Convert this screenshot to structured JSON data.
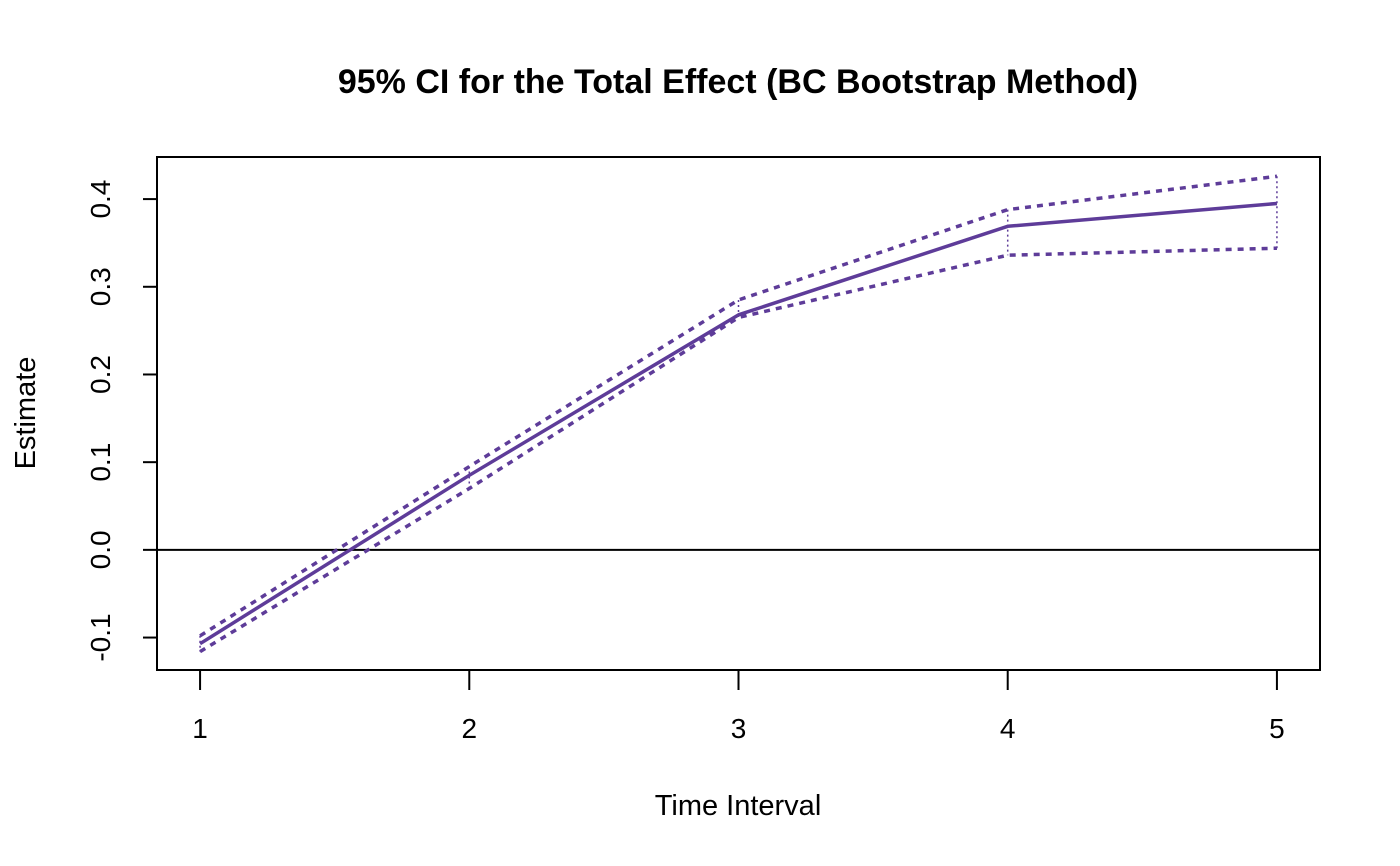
{
  "chart_data": {
    "type": "line",
    "title": "95% CI for the Total Effect (BC Bootstrap Method)",
    "xlabel": "Time Interval",
    "ylabel": "Estimate",
    "x": [
      1,
      2,
      3,
      4,
      5
    ],
    "x_tick_labels": [
      "1",
      "2",
      "3",
      "4",
      "5"
    ],
    "y_ticks": [
      -0.1,
      0.0,
      0.1,
      0.2,
      0.3,
      0.4
    ],
    "y_tick_labels": [
      "-0.1",
      "0.0",
      "0.1",
      "0.2",
      "0.3",
      "0.4"
    ],
    "xlim": [
      0.84,
      5.16
    ],
    "ylim": [
      -0.137,
      0.448
    ],
    "reference_line": 0,
    "grid": false,
    "legend": "none",
    "series": [
      {
        "role": "estimate",
        "style": "solid",
        "values": [
          -0.107,
          0.085,
          0.268,
          0.369,
          0.395
        ]
      },
      {
        "role": "upper",
        "style": "dashed",
        "values": [
          -0.098,
          0.095,
          0.285,
          0.388,
          0.426
        ]
      },
      {
        "role": "lower",
        "style": "dashed",
        "values": [
          -0.116,
          0.07,
          0.265,
          0.336,
          0.344
        ]
      }
    ],
    "color": "#5E3C99"
  }
}
